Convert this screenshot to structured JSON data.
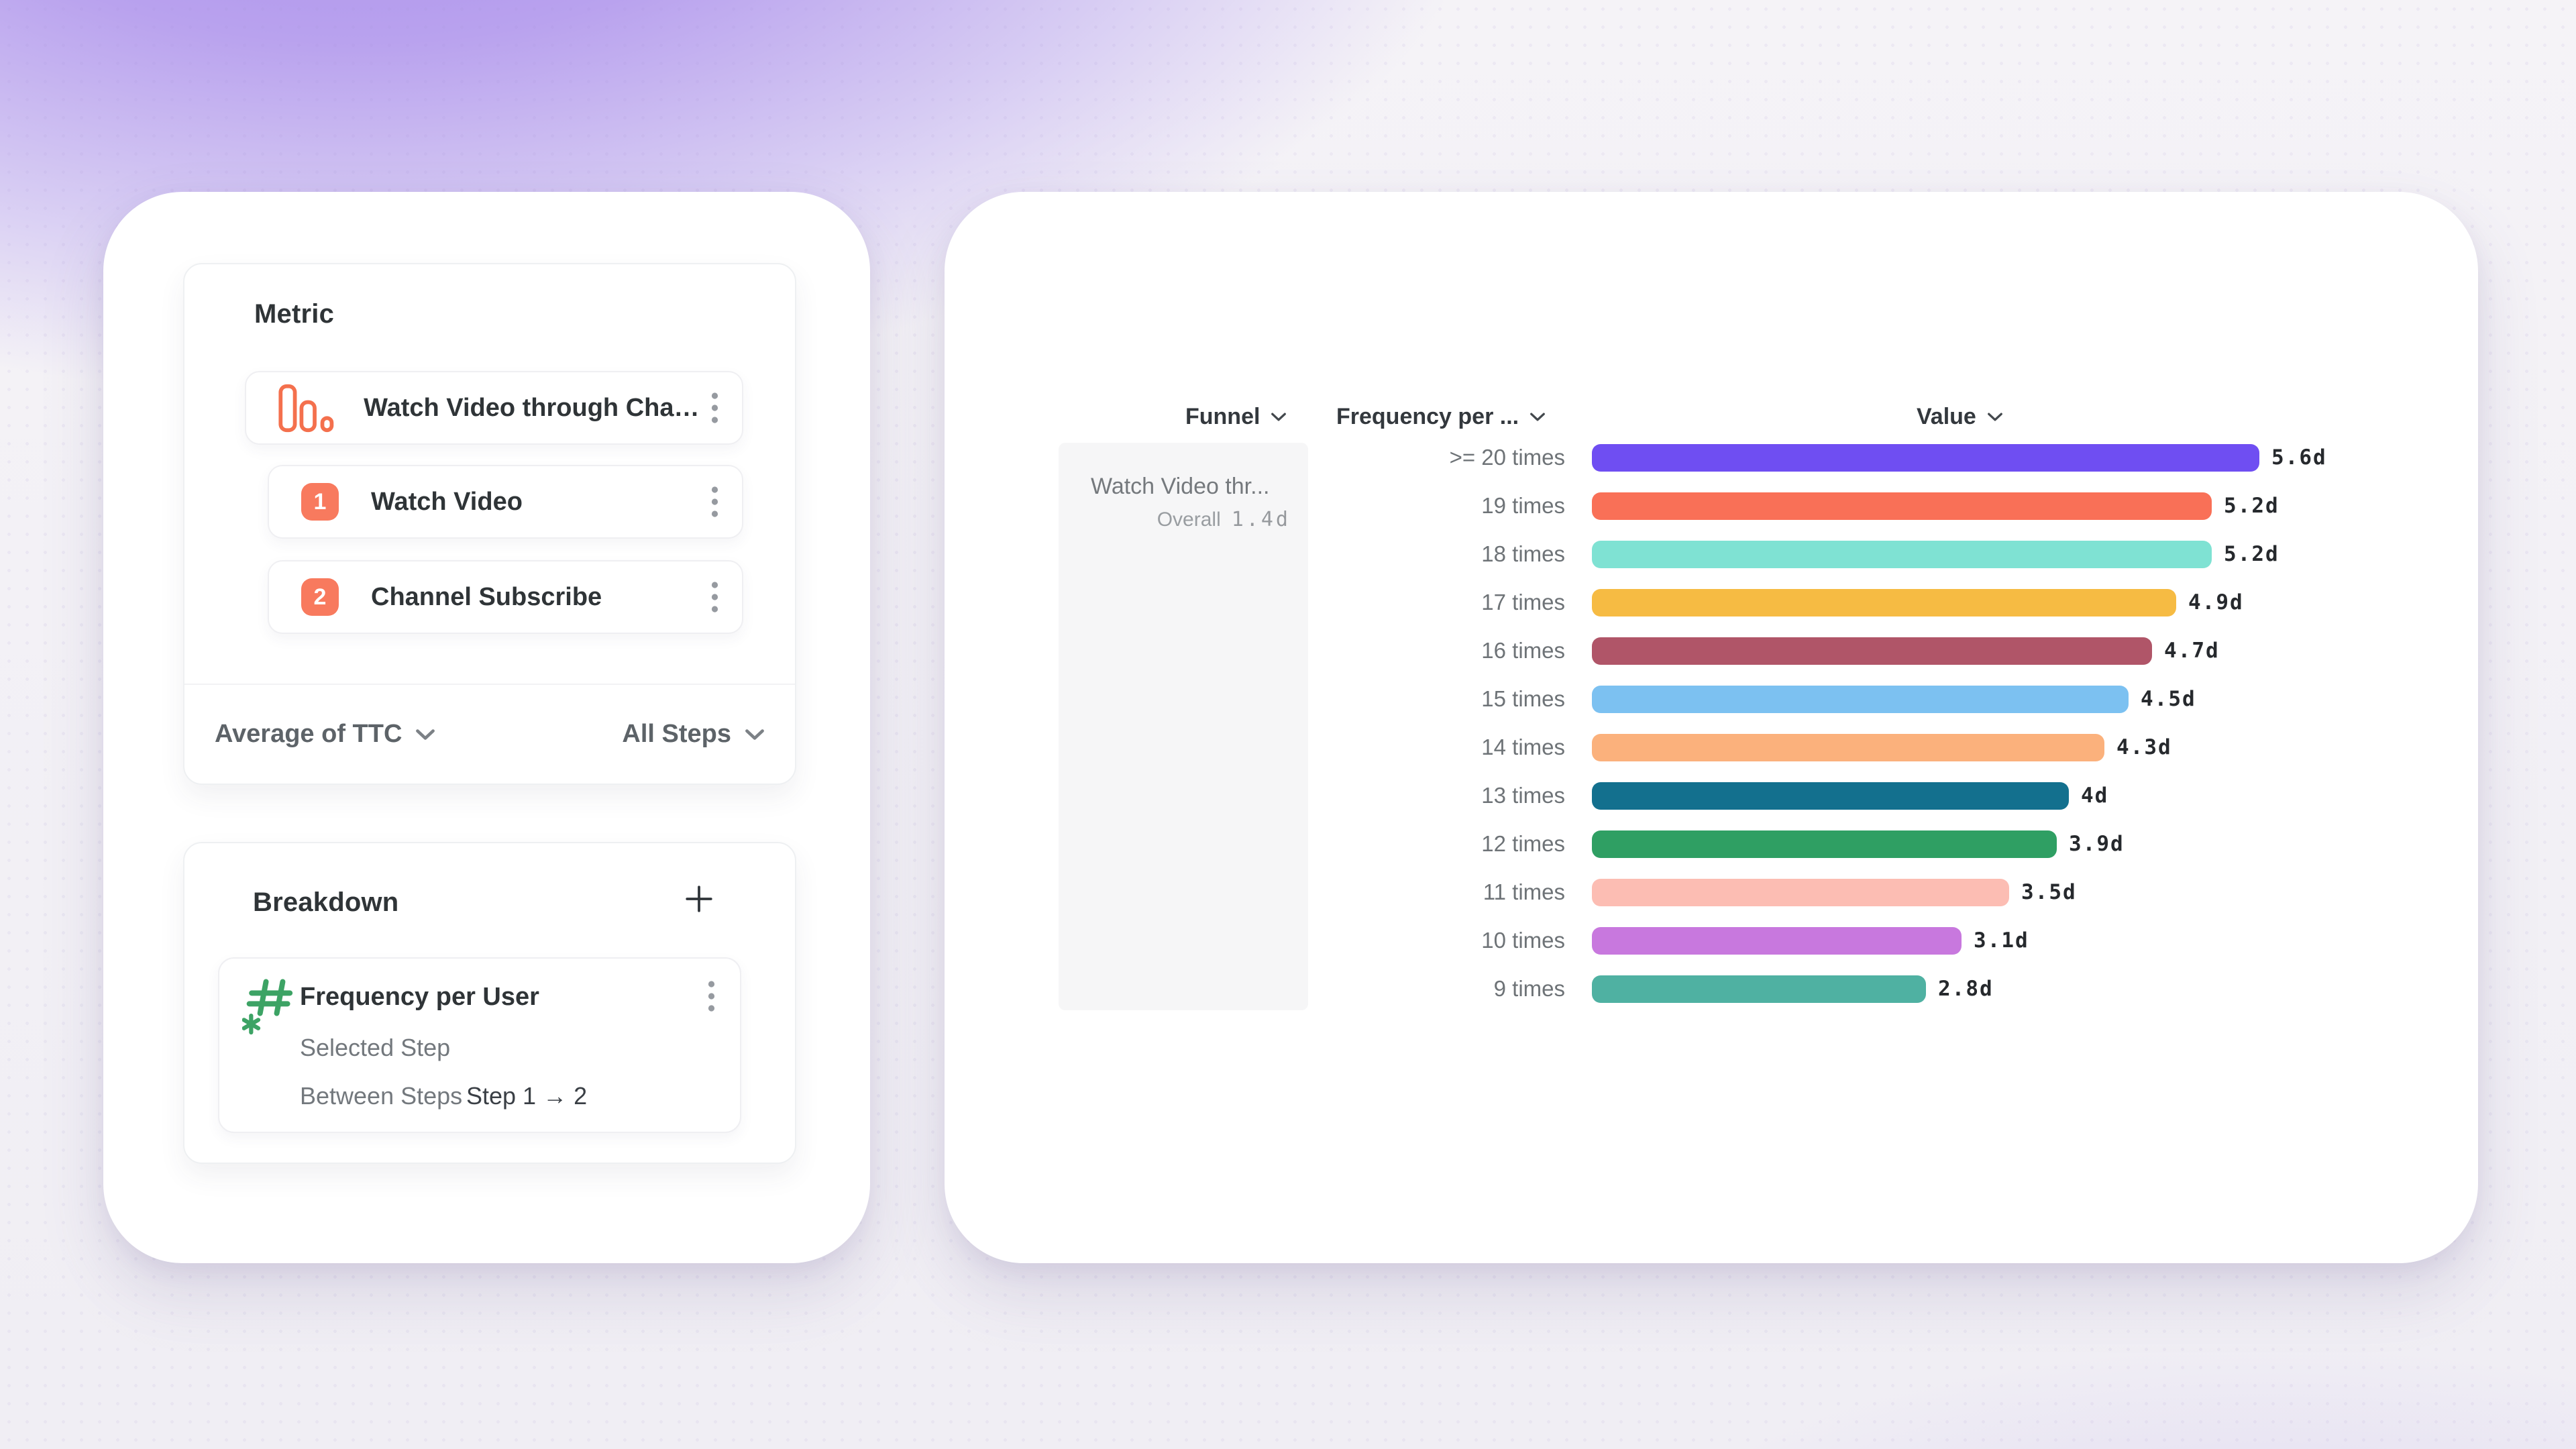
{
  "left_panel": {
    "metric": {
      "title": "Metric",
      "event": {
        "label": "Watch Video through Channel ...",
        "icon": "bar-chart-icon",
        "icon_color": "#f4704d"
      },
      "steps": [
        {
          "number": "1",
          "label": "Watch Video"
        },
        {
          "number": "2",
          "label": "Channel Subscribe"
        }
      ],
      "step_badge_color": "#f87a5e",
      "aggregation_dropdown": {
        "label": "Average of TTC",
        "icon": "chevron-down-icon"
      },
      "steps_dropdown": {
        "label": "All Steps",
        "icon": "chevron-down-icon"
      }
    },
    "breakdown": {
      "title": "Breakdown",
      "add_icon": "plus-icon",
      "item": {
        "icon": "numeric-property-icon",
        "icon_color": "#3da365",
        "label": "Frequency per User",
        "details": [
          {
            "label": "Selected Step",
            "value": ""
          },
          {
            "label": "Between Steps",
            "value": "Step 1 → 2"
          }
        ]
      }
    }
  },
  "chart_panel": {
    "column_headers": [
      {
        "label": "Funnel"
      },
      {
        "label": "Frequency per ..."
      },
      {
        "label": "Value"
      }
    ],
    "funnel_cell": {
      "name": "Watch Video thr...",
      "overall_label": "Overall",
      "overall_value": "1.4d"
    }
  },
  "chart_data": {
    "type": "bar",
    "orientation": "horizontal",
    "title": "",
    "xlabel": "Value",
    "ylabel": "Frequency per User",
    "unit": "days",
    "grid": false,
    "legend": "none",
    "series_name": "Average of TTC",
    "categories": [
      ">= 20 times",
      "19 times",
      "18 times",
      "17 times",
      "16 times",
      "15 times",
      "14 times",
      "13 times",
      "12 times",
      "11 times",
      "10 times",
      "9 times"
    ],
    "values": [
      5.6,
      5.2,
      5.2,
      4.9,
      4.7,
      4.5,
      4.3,
      4.0,
      3.9,
      3.5,
      3.1,
      2.8
    ],
    "value_labels": [
      "5.6d",
      "5.2d",
      "5.2d",
      "4.9d",
      "4.7d",
      "4.5d",
      "4.3d",
      "4d",
      "3.9d",
      "3.5d",
      "3.1d",
      "2.8d"
    ],
    "colors": [
      "#6f4ef2",
      "#f97057",
      "#7fe2d3",
      "#f6bb43",
      "#b05568",
      "#7cc1f1",
      "#fbb17c",
      "#13708e",
      "#2f9f63",
      "#fcbdb3",
      "#c878de",
      "#4fb1a2"
    ],
    "xlim": [
      0,
      5.6
    ]
  }
}
